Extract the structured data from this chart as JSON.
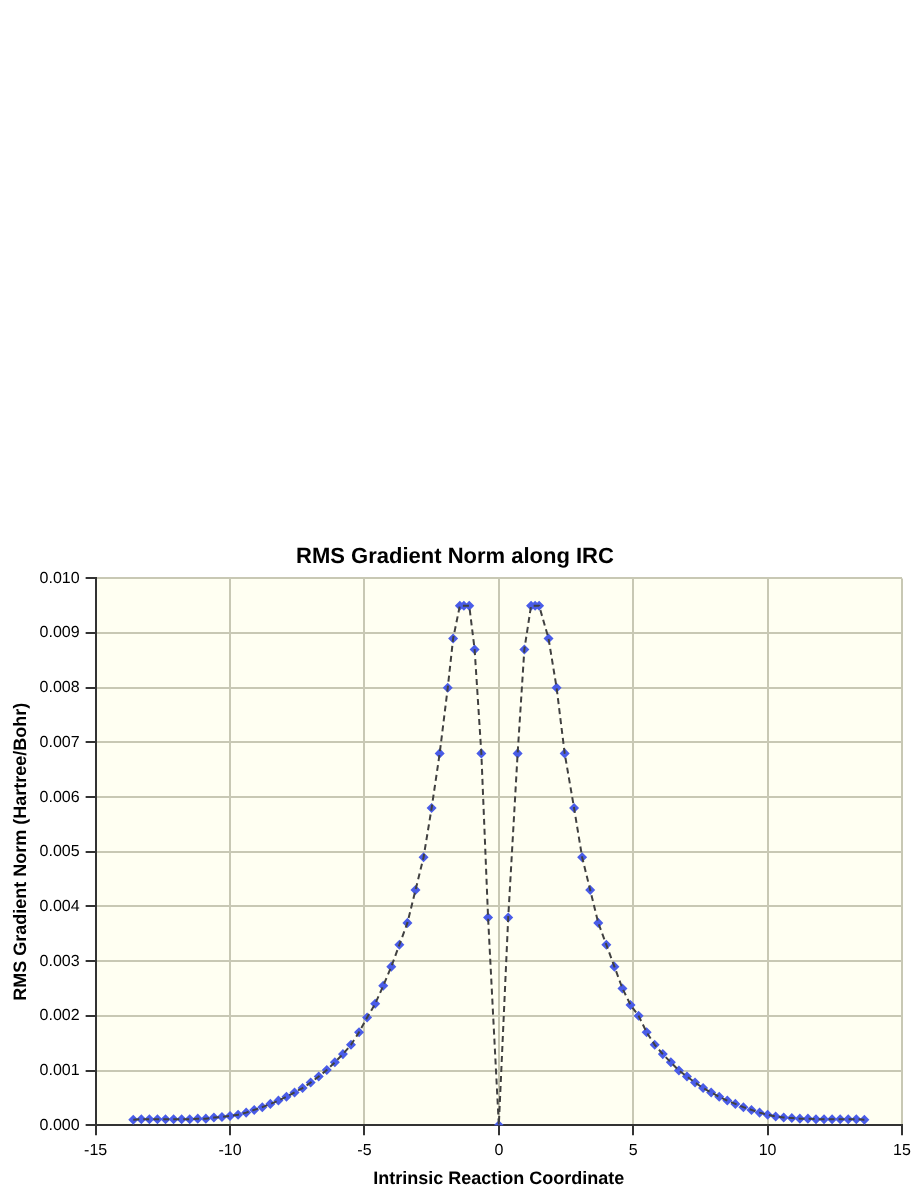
{
  "chart_data": {
    "type": "line",
    "title": "RMS Gradient Norm along IRC",
    "xlabel": "Intrinsic Reaction Coordinate",
    "ylabel": "RMS Gradient Norm (Hartree/Bohr)",
    "x": [
      -13.6,
      -13.3,
      -13.0,
      -12.7,
      -12.4,
      -12.1,
      -11.8,
      -11.5,
      -11.2,
      -10.9,
      -10.6,
      -10.3,
      -10.0,
      -9.7,
      -9.4,
      -9.1,
      -8.8,
      -8.5,
      -8.2,
      -7.9,
      -7.6,
      -7.3,
      -7.0,
      -6.7,
      -6.4,
      -6.1,
      -5.8,
      -5.5,
      -5.2,
      -4.9,
      -4.6,
      -4.3,
      -4.0,
      -3.7,
      -3.4,
      -3.1,
      -2.8,
      -2.5,
      -2.2,
      -1.9,
      -1.7,
      -1.45,
      -1.3,
      -1.1,
      -0.9,
      -0.65,
      -0.4,
      0.0,
      0.35,
      0.7,
      0.95,
      1.2,
      1.35,
      1.5,
      1.85,
      2.15,
      2.45,
      2.8,
      3.1,
      3.4,
      3.7,
      4.0,
      4.3,
      4.6,
      4.9,
      5.2,
      5.5,
      5.8,
      6.1,
      6.4,
      6.7,
      7.0,
      7.3,
      7.6,
      7.9,
      8.2,
      8.5,
      8.8,
      9.1,
      9.4,
      9.7,
      10.0,
      10.3,
      10.6,
      10.9,
      11.2,
      11.5,
      11.8,
      12.1,
      12.4,
      12.7,
      13.0,
      13.3,
      13.6
    ],
    "series": [
      {
        "type": "line",
        "color": "#404040",
        "marker": "none",
        "line_style": "dashed",
        "values": [
          0.0001,
          0.00011,
          0.00011,
          0.00011,
          0.00011,
          0.00011,
          0.00011,
          0.00011,
          0.00012,
          0.00012,
          0.00014,
          0.00015,
          0.00017,
          0.00019,
          0.00023,
          0.00028,
          0.00033,
          0.00039,
          0.00045,
          0.00052,
          0.0006,
          0.00068,
          0.00078,
          0.00089,
          0.00101,
          0.00115,
          0.0013,
          0.00147,
          0.0017,
          0.00197,
          0.00222,
          0.00255,
          0.0029,
          0.0033,
          0.0037,
          0.0043,
          0.0049,
          0.0058,
          0.0068,
          0.008,
          0.0089,
          0.0095,
          0.0095,
          0.0095,
          0.0087,
          0.0068,
          0.0038,
          0.0,
          0.0038,
          0.0068,
          0.0087,
          0.0095,
          0.0095,
          0.0095,
          0.0089,
          0.008,
          0.0068,
          0.0058,
          0.0049,
          0.0043,
          0.0037,
          0.0033,
          0.0029,
          0.0025,
          0.0022,
          0.002,
          0.0017,
          0.00147,
          0.0013,
          0.00115,
          0.001,
          0.00089,
          0.00078,
          0.00068,
          0.0006,
          0.00052,
          0.00045,
          0.00039,
          0.00033,
          0.00028,
          0.00023,
          0.00019,
          0.00016,
          0.00014,
          0.00013,
          0.00012,
          0.00012,
          0.00011,
          0.00011,
          0.00011,
          0.00011,
          0.00011,
          0.00011,
          0.0001
        ]
      },
      {
        "type": "scatter",
        "color": "#4a5de8",
        "marker": "diamond",
        "values": [
          0.0001,
          0.00011,
          0.00011,
          0.00011,
          0.00011,
          0.00011,
          0.00011,
          0.00011,
          0.00012,
          0.00012,
          0.00014,
          0.00015,
          0.00017,
          0.00019,
          0.00023,
          0.00028,
          0.00033,
          0.00039,
          0.00045,
          0.00052,
          0.0006,
          0.00068,
          0.00078,
          0.00089,
          0.00101,
          0.00115,
          0.0013,
          0.00147,
          0.0017,
          0.00197,
          0.00222,
          0.00255,
          0.0029,
          0.0033,
          0.0037,
          0.0043,
          0.0049,
          0.0058,
          0.0068,
          0.008,
          0.0089,
          0.0095,
          0.0095,
          0.0095,
          0.0087,
          0.0068,
          0.0038,
          0.0,
          0.0038,
          0.0068,
          0.0087,
          0.0095,
          0.0095,
          0.0095,
          0.0089,
          0.008,
          0.0068,
          0.0058,
          0.0049,
          0.0043,
          0.0037,
          0.0033,
          0.0029,
          0.0025,
          0.0022,
          0.002,
          0.0017,
          0.00147,
          0.0013,
          0.00115,
          0.001,
          0.00089,
          0.00078,
          0.00068,
          0.0006,
          0.00052,
          0.00045,
          0.00039,
          0.00033,
          0.00028,
          0.00023,
          0.00019,
          0.00016,
          0.00014,
          0.00013,
          0.00012,
          0.00012,
          0.00011,
          0.00011,
          0.00011,
          0.00011,
          0.00011,
          0.00011,
          0.0001
        ]
      }
    ],
    "xlim": [
      -15,
      15
    ],
    "xticks": [
      -15,
      -10,
      -5,
      0,
      5,
      10,
      15
    ],
    "ylim": [
      0,
      0.01
    ],
    "yticks": [
      {
        "value": 0,
        "label": "0.000"
      },
      {
        "value": 0.001,
        "label": "0.001"
      },
      {
        "value": 0.002,
        "label": "0.002"
      },
      {
        "value": 0.003,
        "label": "0.003"
      },
      {
        "value": 0.004,
        "label": "0.004"
      },
      {
        "value": 0.005,
        "label": "0.005"
      },
      {
        "value": 0.006,
        "label": "0.006"
      },
      {
        "value": 0.007,
        "label": "0.007"
      },
      {
        "value": 0.008,
        "label": "0.008"
      },
      {
        "value": 0.009,
        "label": "0.009"
      },
      {
        "value": 0.01,
        "label": "0.010"
      }
    ],
    "grid": true,
    "legend": false
  }
}
